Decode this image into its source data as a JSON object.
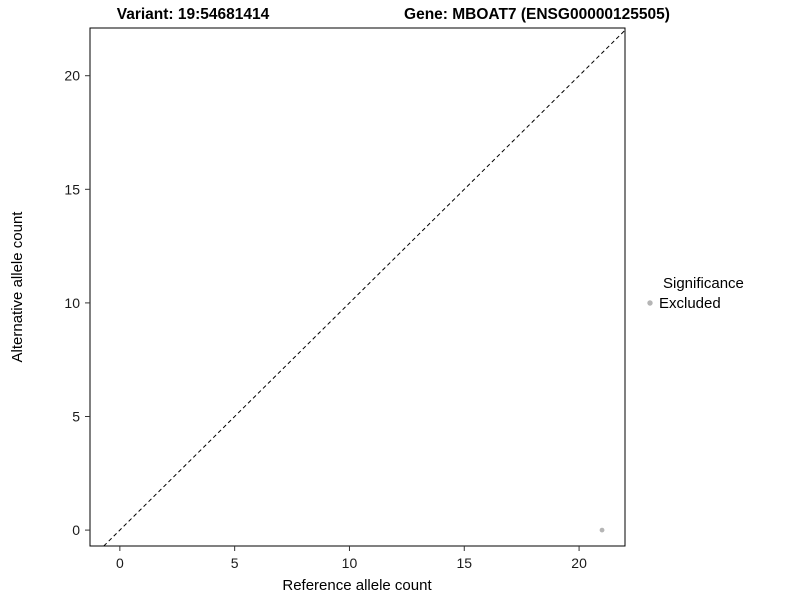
{
  "chart_data": {
    "type": "scatter",
    "title_left": "Variant: 19:54681414",
    "title_right": "Gene: MBOAT7 (ENSG00000125505)",
    "xlabel": "Reference allele count",
    "ylabel": "Alternative allele count",
    "xlim": [
      -1.3,
      22.0
    ],
    "ylim": [
      -0.7,
      22.1
    ],
    "x_ticks": [
      0,
      5,
      10,
      15,
      20
    ],
    "y_ticks": [
      0,
      5,
      10,
      15,
      20
    ],
    "grid": false,
    "panel_border_color": "#000000",
    "points": [
      {
        "x": 21,
        "y": 0,
        "series": "Excluded",
        "color": "#b5b5b5"
      }
    ],
    "reference_line": {
      "style": "dashed",
      "slope": 1,
      "intercept": 0,
      "color": "#000000"
    },
    "legend": {
      "position": "right",
      "title": "Significance",
      "entries": [
        {
          "label": "Excluded",
          "color": "#b5b5b5",
          "marker": "dot"
        }
      ]
    }
  }
}
